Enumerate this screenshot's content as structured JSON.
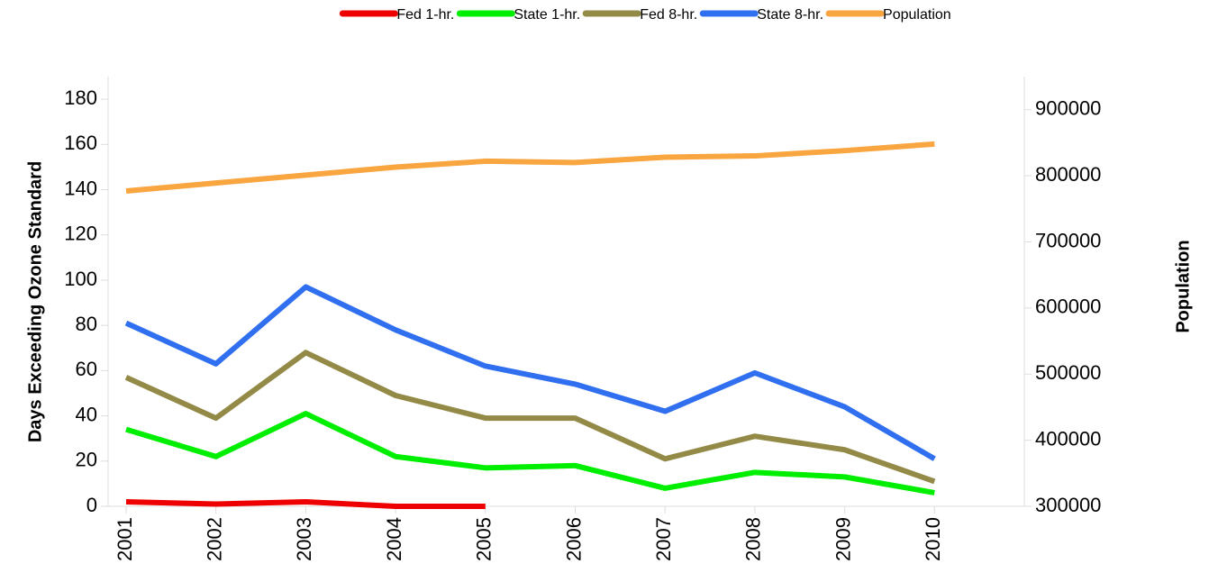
{
  "chart_data": {
    "type": "line",
    "categories": [
      "2001",
      "2002",
      "2003",
      "2004",
      "2005",
      "2006",
      "2007",
      "2008",
      "2009",
      "2010"
    ],
    "series": [
      {
        "name": "Fed 1-hr.",
        "color": "#ee0000",
        "values": [
          2,
          1,
          2,
          0,
          0,
          null,
          null,
          null,
          null,
          null
        ]
      },
      {
        "name": "State 1-hr.",
        "color": "#00ee00",
        "values": [
          34,
          22,
          41,
          22,
          17,
          18,
          8,
          15,
          13,
          6
        ]
      },
      {
        "name": "Fed 8-hr.",
        "color": "#948a47",
        "values": [
          57,
          39,
          68,
          49,
          39,
          39,
          21,
          31,
          25,
          11
        ]
      },
      {
        "name": "State 8-hr.",
        "color": "#3070f0",
        "values": [
          81,
          63,
          97,
          78,
          62,
          54,
          42,
          59,
          44,
          21
        ]
      },
      {
        "name": "Population",
        "color": "#f9a540",
        "axis": "y2",
        "values": [
          777000,
          789000,
          801000,
          813000,
          822000,
          820000,
          828000,
          830000,
          838000,
          848000
        ]
      }
    ],
    "ylabel": "Days Exceeding Ozone Standard",
    "y2label": "Population",
    "ylim": [
      0,
      190
    ],
    "yticks": [
      0,
      20,
      40,
      60,
      80,
      100,
      120,
      140,
      160,
      180
    ],
    "y2lim": [
      300000,
      950000
    ],
    "y2ticks": [
      300000,
      400000,
      500000,
      600000,
      700000,
      800000,
      900000
    ],
    "legend": "top",
    "grid": false
  }
}
